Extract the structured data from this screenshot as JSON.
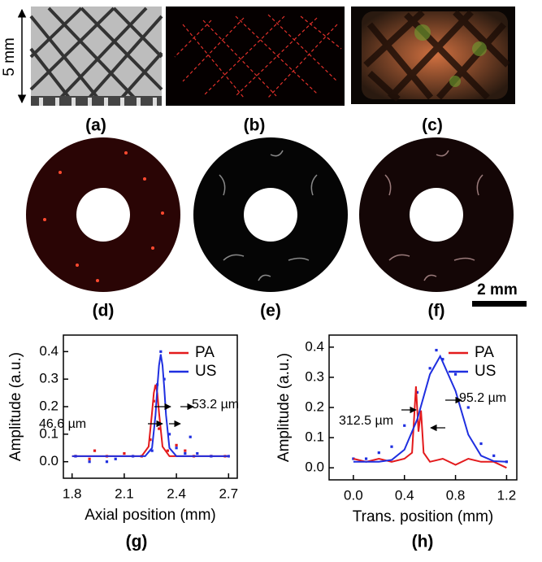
{
  "panel_labels": [
    "(a)",
    "(b)",
    "(c)",
    "(d)",
    "(e)",
    "(f)",
    "(g)",
    "(h)"
  ],
  "scale_bars": [
    "5 mm",
    "2 mm"
  ],
  "chart_data": [
    {
      "type": "line",
      "xlabel": "Axial position (mm)",
      "ylabel": "Amplitude (a.u.)",
      "xlim": [
        1.75,
        2.75
      ],
      "ylim": [
        -0.06,
        0.46
      ],
      "xticks": [
        1.8,
        2.1,
        2.4,
        2.7
      ],
      "yticks": [
        {
          "value": 0,
          "label": "0.0"
        },
        0.1,
        0.2,
        0.3,
        0.4
      ],
      "legend": "upper right",
      "annotations": [
        "53.2 µm",
        "46.6 µm"
      ],
      "series": [
        {
          "color": "#e31a1c",
          "style": "points",
          "x": [
            1.82,
            1.9,
            1.93,
            2.0,
            2.1,
            2.2,
            2.25,
            2.27,
            2.28,
            2.3,
            2.35,
            2.4,
            2.45,
            2.5,
            2.6,
            2.68
          ],
          "values": [
            0.02,
            0.01,
            0.04,
            0.02,
            0.03,
            0.02,
            0.08,
            0.22,
            0.27,
            0.12,
            0.04,
            0.06,
            0.04,
            0.02,
            0.02,
            0.02
          ]
        },
        {
          "color": "#1f2fe0",
          "style": "points",
          "x": [
            1.82,
            1.9,
            2.0,
            2.05,
            2.15,
            2.26,
            2.29,
            2.31,
            2.33,
            2.36,
            2.4,
            2.45,
            2.48,
            2.52,
            2.6,
            2.7
          ],
          "values": [
            0.02,
            0.0,
            0.0,
            0.01,
            0.02,
            0.04,
            0.28,
            0.4,
            0.3,
            0.1,
            0.05,
            0.03,
            0.09,
            0.03,
            0.02,
            0.02
          ]
        },
        {
          "name": "PA",
          "color": "#e31a1c",
          "x": [
            1.8,
            2.2,
            2.24,
            2.26,
            2.27,
            2.28,
            2.29,
            2.3,
            2.32,
            2.36,
            2.7
          ],
          "values": [
            0.02,
            0.02,
            0.055,
            0.178,
            0.25,
            0.28,
            0.25,
            0.178,
            0.055,
            0.02,
            0.02
          ]
        },
        {
          "name": "US",
          "color": "#1f2fe0",
          "x": [
            1.8,
            2.22,
            2.26,
            2.28,
            2.29,
            2.3,
            2.31,
            2.32,
            2.33,
            2.34,
            2.36,
            2.4,
            2.7
          ],
          "values": [
            0.02,
            0.02,
            0.05,
            0.17,
            0.27,
            0.35,
            0.39,
            0.35,
            0.27,
            0.17,
            0.05,
            0.02,
            0.02
          ]
        }
      ]
    },
    {
      "type": "line",
      "xlabel": "Trans. position (mm)",
      "ylabel": "Amplitude (a.u.)",
      "xlim": [
        -0.19,
        1.28
      ],
      "ylim": [
        -0.04,
        0.44
      ],
      "xticks": [
        {
          "value": 0,
          "label": "0.0"
        },
        0.4,
        0.8,
        1.2
      ],
      "yticks": [
        {
          "value": 0,
          "label": "0.0"
        },
        0.1,
        0.2,
        0.3,
        0.4
      ],
      "legend": "upper right",
      "annotations": [
        "95.2 µm",
        "312.5 µm"
      ],
      "series": [
        {
          "color": "#1f2fe0",
          "style": "points",
          "x": [
            0.0,
            0.1,
            0.2,
            0.3,
            0.4,
            0.5,
            0.6,
            0.65,
            0.7,
            0.8,
            0.9,
            1.0,
            1.1,
            1.2
          ],
          "values": [
            0.03,
            0.03,
            0.05,
            0.07,
            0.14,
            0.25,
            0.33,
            0.39,
            0.36,
            0.31,
            0.2,
            0.08,
            0.04,
            0.02
          ]
        },
        {
          "name": "PA",
          "color": "#e31a1c",
          "x": [
            0.0,
            0.1,
            0.2,
            0.3,
            0.4,
            0.46,
            0.49,
            0.51,
            0.53,
            0.55,
            0.6,
            0.7,
            0.8,
            0.9,
            1.0,
            1.1,
            1.2
          ],
          "values": [
            0.03,
            0.02,
            0.03,
            0.02,
            0.03,
            0.05,
            0.27,
            0.12,
            0.19,
            0.05,
            0.02,
            0.03,
            0.01,
            0.03,
            0.02,
            0.02,
            0.0
          ]
        },
        {
          "name": "US",
          "color": "#1f2fe0",
          "x": [
            0.0,
            0.2,
            0.3,
            0.4,
            0.5,
            0.6,
            0.68,
            0.8,
            0.9,
            1.0,
            1.1,
            1.2
          ],
          "values": [
            0.02,
            0.02,
            0.026,
            0.06,
            0.16,
            0.31,
            0.37,
            0.255,
            0.11,
            0.04,
            0.022,
            0.02
          ]
        }
      ]
    }
  ]
}
